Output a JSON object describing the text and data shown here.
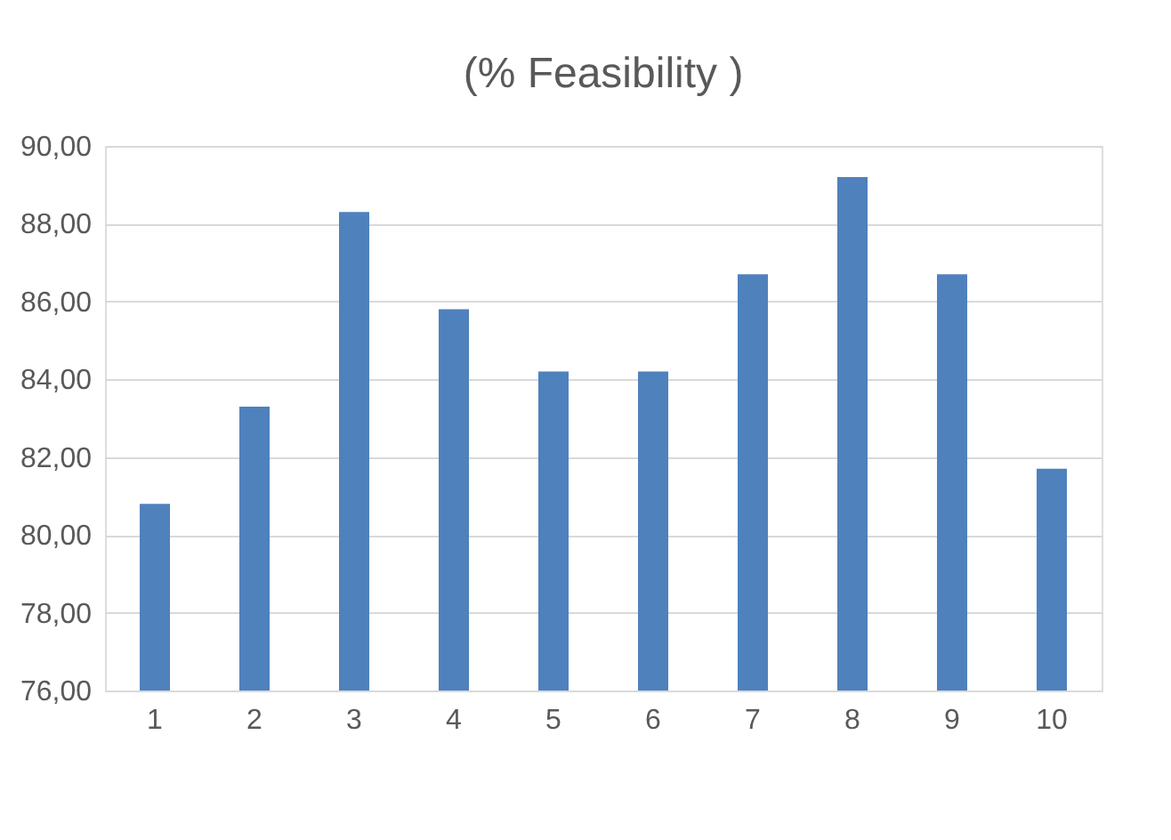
{
  "chart_data": {
    "type": "bar",
    "title": "(% Feasibility )",
    "categories": [
      "1",
      "2",
      "3",
      "4",
      "5",
      "6",
      "7",
      "8",
      "9",
      "10"
    ],
    "values": [
      80.8,
      83.3,
      88.3,
      85.8,
      84.2,
      84.2,
      86.7,
      89.2,
      86.7,
      81.7
    ],
    "color": "#4f81bd",
    "ylim": [
      76,
      90
    ],
    "yticks": [
      {
        "value": 76,
        "label": "76,00"
      },
      {
        "value": 78,
        "label": "78,00"
      },
      {
        "value": 80,
        "label": "80,00"
      },
      {
        "value": 82,
        "label": "82,00"
      },
      {
        "value": 84,
        "label": "84,00"
      },
      {
        "value": 86,
        "label": "86,00"
      },
      {
        "value": 88,
        "label": "88,00"
      },
      {
        "value": 90,
        "label": "90,00"
      }
    ],
    "grid": "y"
  }
}
